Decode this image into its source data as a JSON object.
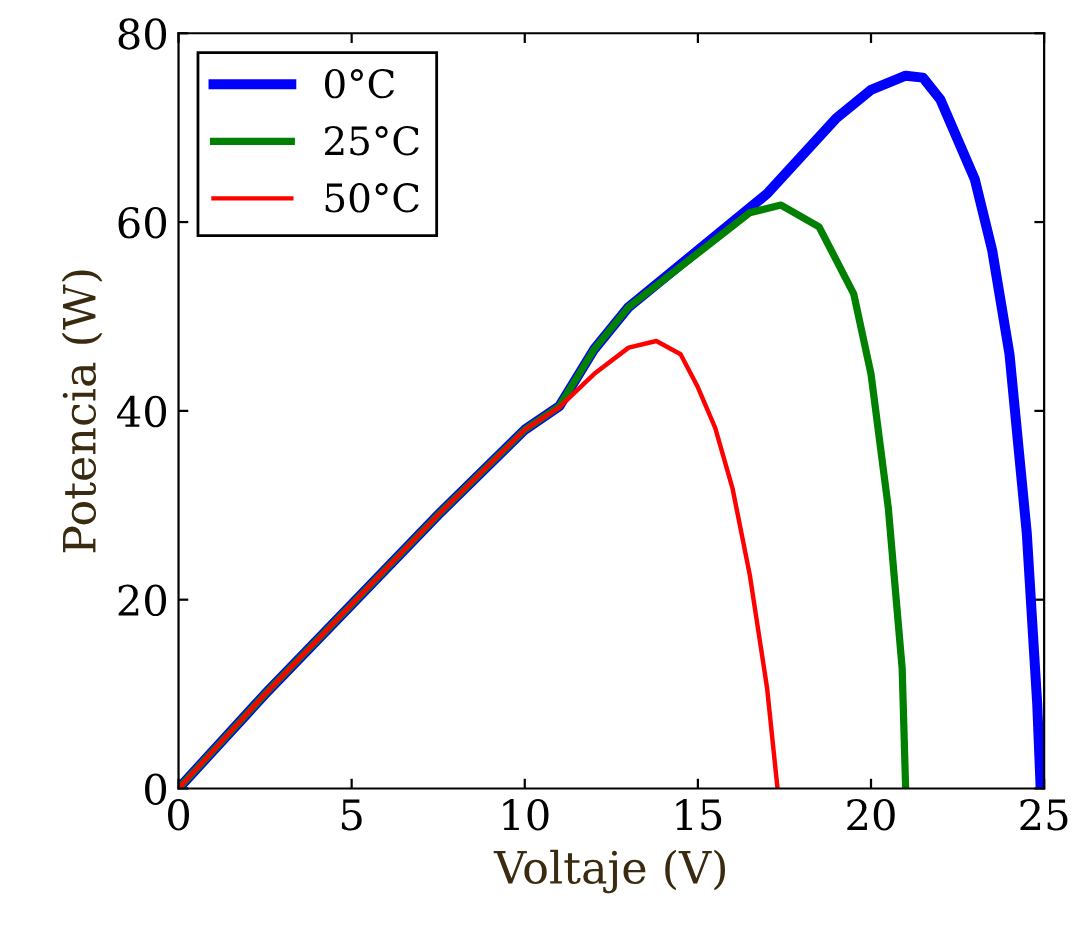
{
  "chart_data": {
    "type": "line",
    "xlabel": "Voltaje (V)",
    "ylabel": "Potencia (W)",
    "xlim": [
      0,
      25
    ],
    "ylim": [
      0,
      80
    ],
    "xticks": [
      0,
      5,
      10,
      15,
      20,
      25
    ],
    "yticks": [
      0,
      20,
      40,
      60,
      80
    ],
    "grid": false,
    "legend": "top left",
    "marker": "none",
    "line_style": "solid",
    "series": [
      {
        "name": "0°C",
        "color": "#0000ff",
        "x": [
          0,
          2.5,
          5,
          7.5,
          10,
          11,
          12,
          13,
          15,
          17,
          19,
          20,
          21,
          21.5,
          22,
          23,
          23.5,
          24,
          24.5,
          24.8,
          24.9
        ],
        "values": [
          0,
          10,
          19.5,
          29,
          38,
          40.5,
          46.5,
          51,
          57,
          63,
          71,
          74,
          75.5,
          75.3,
          73,
          64.5,
          57,
          46,
          27,
          9,
          0
        ]
      },
      {
        "name": "25°C",
        "color": "#008000",
        "x": [
          0,
          2.5,
          5,
          7.5,
          10,
          11,
          12,
          13,
          15,
          16.5,
          17.4,
          18.5,
          19.5,
          20,
          20.5,
          20.9,
          21
        ],
        "values": [
          0,
          10,
          19.5,
          29,
          38,
          40.5,
          46.5,
          51,
          56.7,
          61,
          61.8,
          59.5,
          52.4,
          43.9,
          29.7,
          12.7,
          0
        ]
      },
      {
        "name": "50°C",
        "color": "#ff0000",
        "x": [
          0,
          2.5,
          5,
          7.5,
          10,
          11,
          12,
          13,
          13.8,
          14.5,
          15,
          15.5,
          16,
          16.5,
          17,
          17.3
        ],
        "values": [
          0,
          10,
          19.5,
          29,
          38,
          40.4,
          43.9,
          46.7,
          47.4,
          46,
          42.5,
          38.2,
          31.8,
          22.6,
          10.6,
          0
        ]
      }
    ]
  }
}
